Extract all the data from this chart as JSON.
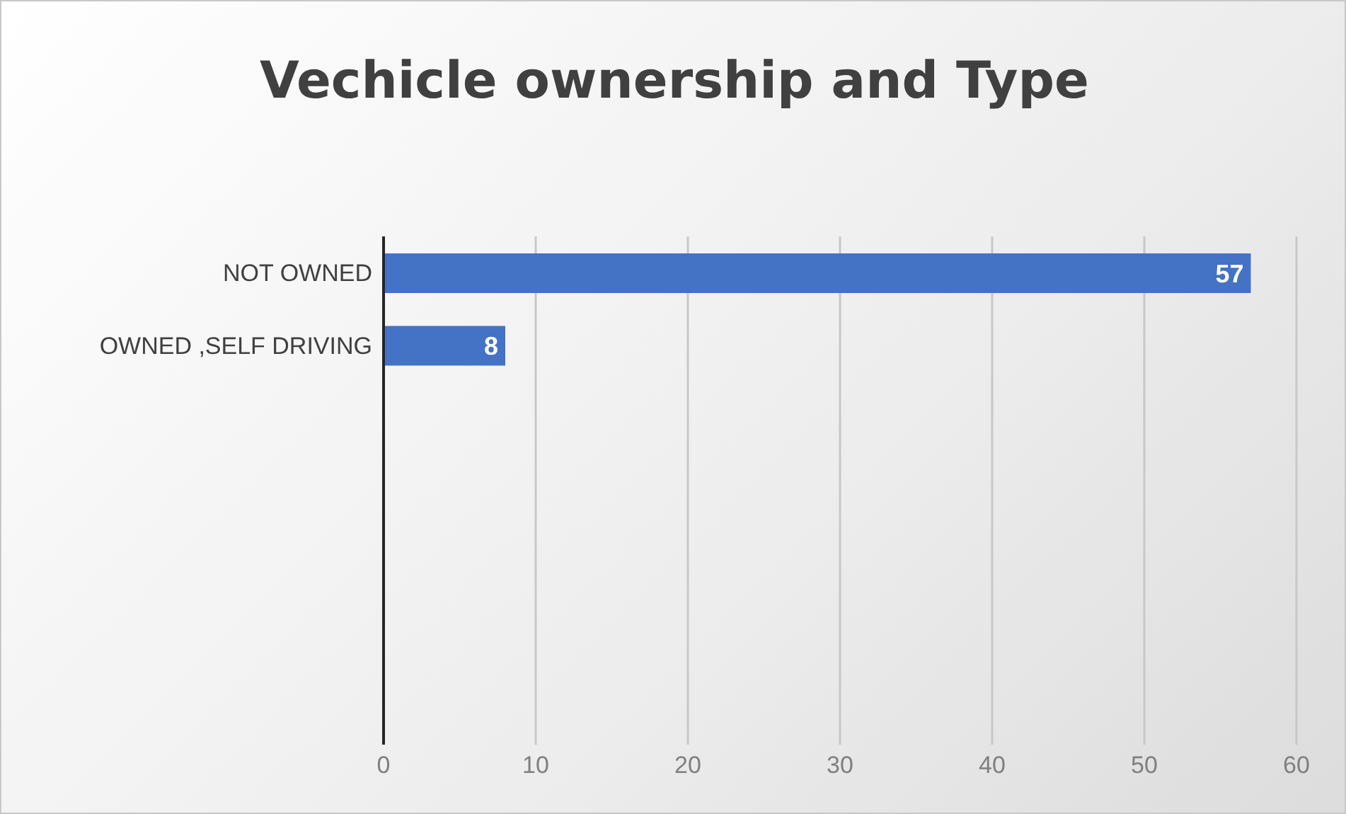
{
  "chart_data": {
    "type": "bar",
    "orientation": "horizontal",
    "title": "Vechicle ownership and Type",
    "categories": [
      "NOT OWNED",
      "OWNED ,SELF DRIVING",
      null,
      null,
      null,
      null,
      null
    ],
    "values": [
      57,
      8,
      null,
      null,
      null,
      null,
      null
    ],
    "color": "#4472c4",
    "xlim": [
      0,
      60
    ],
    "xticks": [
      0,
      10,
      20,
      30,
      40,
      50,
      60
    ],
    "grid": "x",
    "data_labels": true
  }
}
